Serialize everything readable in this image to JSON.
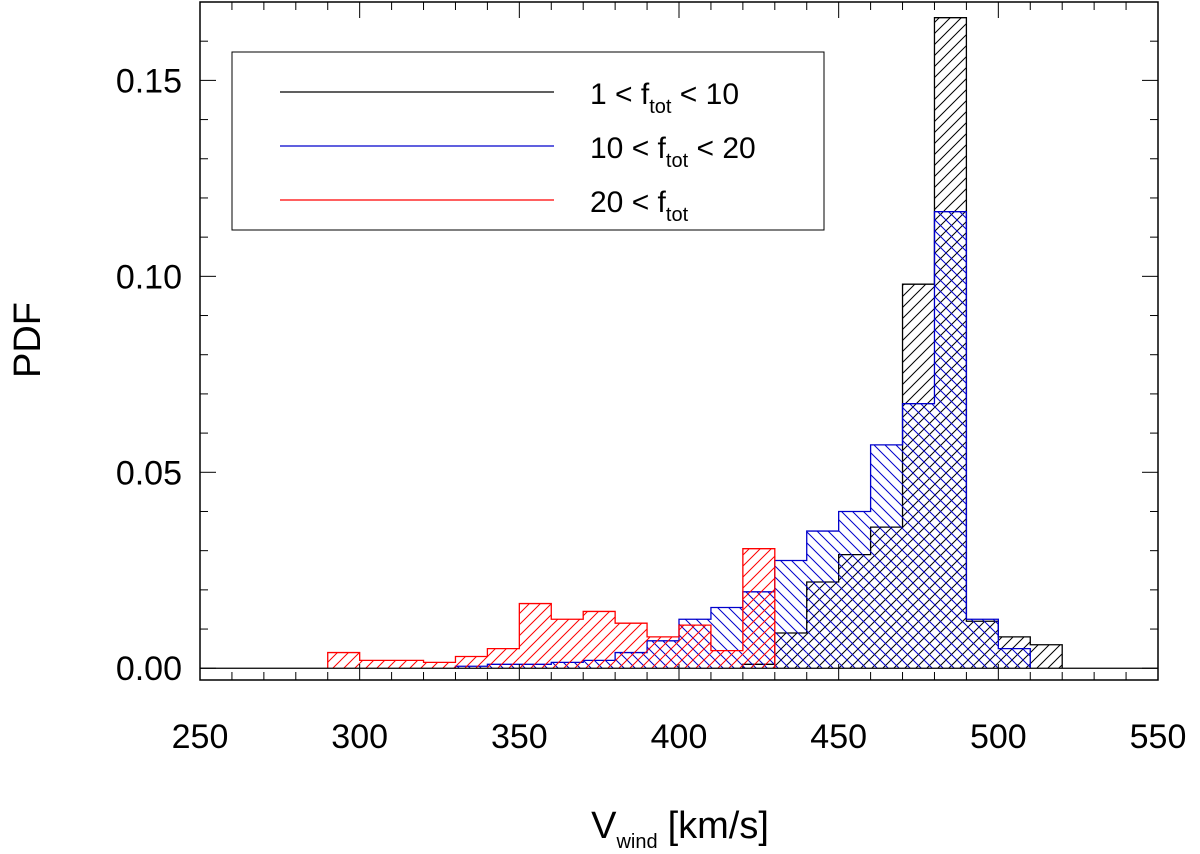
{
  "chart_data": {
    "type": "histogram",
    "title": "",
    "xlabel": {
      "main": "V",
      "sub": "wind",
      "unit": "[km/s]"
    },
    "ylabel": "PDF",
    "xlim": [
      250,
      550
    ],
    "ylim": [
      -0.003,
      0.17
    ],
    "xticks": [
      250,
      300,
      350,
      400,
      450,
      500,
      550
    ],
    "xtick_labels": [
      "250",
      "300",
      "350",
      "400",
      "450",
      "500",
      "550"
    ],
    "yticks": [
      0.0,
      0.05,
      0.1,
      0.15
    ],
    "ytick_labels": [
      "0.00",
      "0.05",
      "0.10",
      "0.15"
    ],
    "bin_width": 10,
    "legend_position": "top-left",
    "series": [
      {
        "name": "1 < f_tot < 10",
        "legend": {
          "pre": "1 < f",
          "sub": "tot",
          "post": " < 10"
        },
        "color": "#000000",
        "hatch": "forward",
        "bin_starts": [
          420,
          430,
          440,
          450,
          460,
          470,
          480,
          490,
          500,
          510
        ],
        "values": [
          0.001,
          0.009,
          0.022,
          0.029,
          0.036,
          0.098,
          0.166,
          0.012,
          0.008,
          0.006
        ]
      },
      {
        "name": "10 < f_tot < 20",
        "legend": {
          "pre": "10 < f",
          "sub": "tot",
          "post": " < 20"
        },
        "color": "#0000cc",
        "hatch": "backward",
        "bin_starts": [
          330,
          340,
          350,
          360,
          370,
          380,
          390,
          400,
          410,
          420,
          430,
          440,
          450,
          460,
          470,
          480,
          490,
          500
        ],
        "values": [
          0.0005,
          0.001,
          0.001,
          0.0015,
          0.002,
          0.004,
          0.007,
          0.0125,
          0.0155,
          0.0195,
          0.0275,
          0.035,
          0.04,
          0.057,
          0.0675,
          0.1165,
          0.0125,
          0.005
        ]
      },
      {
        "name": "20 < f_tot",
        "legend": {
          "pre": "20 < f",
          "sub": "tot",
          "post": ""
        },
        "color": "#ff0000",
        "hatch": "forward",
        "bin_starts": [
          290,
          300,
          310,
          320,
          330,
          340,
          350,
          360,
          370,
          380,
          390,
          400,
          410,
          420
        ],
        "values": [
          0.004,
          0.002,
          0.002,
          0.0015,
          0.003,
          0.005,
          0.0165,
          0.0125,
          0.0145,
          0.0115,
          0.008,
          0.011,
          0.0045,
          0.0305
        ]
      }
    ]
  }
}
